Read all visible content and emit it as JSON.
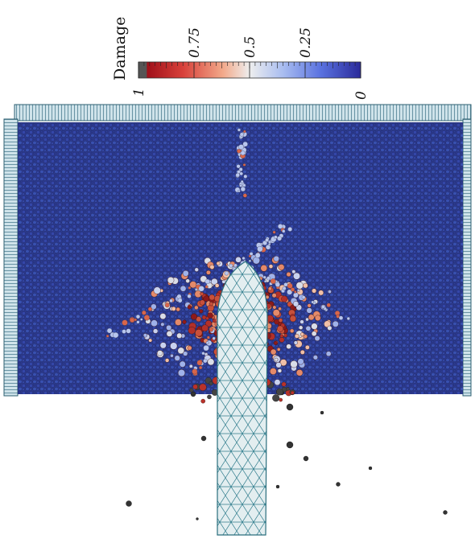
{
  "colorbar": {
    "title": "Damage",
    "ticks": [
      1,
      0.75,
      0.5,
      0.25,
      0
    ]
  }
}
